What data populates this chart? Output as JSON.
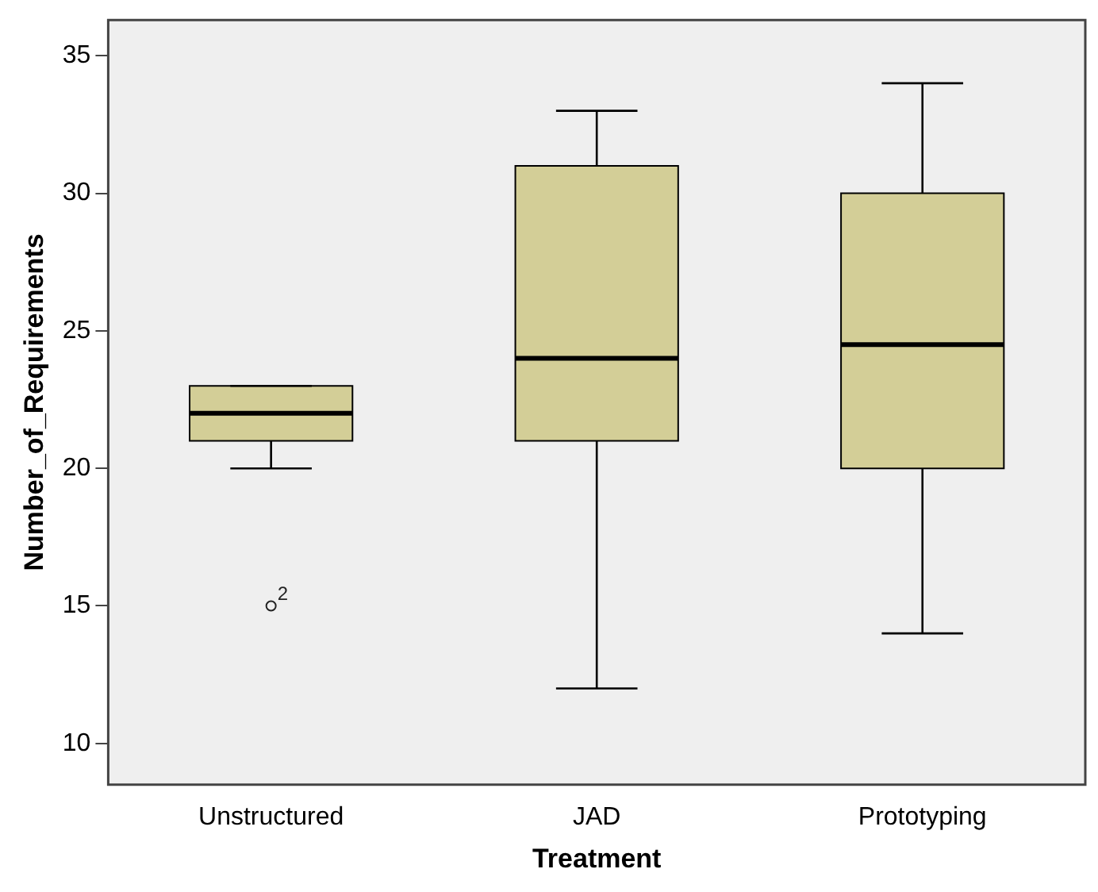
{
  "chart_data": {
    "type": "box",
    "xlabel": "Treatment",
    "ylabel": "Number_of_Requirements",
    "categories": [
      "Unstructured",
      "JAD",
      "Prototyping"
    ],
    "color": "#d3ce97",
    "boxes": [
      {
        "low": 20,
        "q1": 21,
        "median": 22,
        "q3": 23,
        "high": 23,
        "outliers": [
          15
        ]
      },
      {
        "low": 12,
        "q1": 21,
        "median": 24,
        "q3": 31,
        "high": 33
      },
      {
        "low": 14,
        "q1": 20,
        "median": 24.5,
        "q3": 30,
        "high": 34
      }
    ],
    "ylim": [
      8.5,
      36.3
    ],
    "yticks": [
      10,
      15,
      20,
      25,
      30,
      35
    ],
    "grid": false,
    "annotations": [
      "2"
    ]
  }
}
